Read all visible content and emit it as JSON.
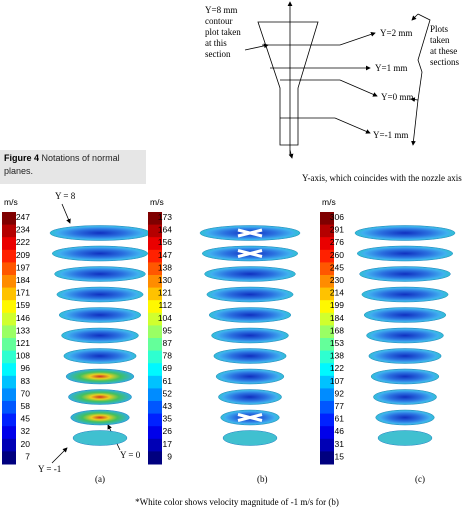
{
  "diagram": {
    "section_note": [
      "Y=8 mm",
      "contour",
      "plot taken",
      "at this",
      "section"
    ],
    "sections": [
      "Y=2 mm",
      "Y=1 mm",
      "Y=0 mm",
      "Y=-1 mm"
    ],
    "plots_note": [
      "Plots",
      "taken",
      "at these",
      "sections"
    ],
    "axis_note": "Y-axis, which coincides with the nozzle axis"
  },
  "caption": {
    "label": "Figure 4",
    "text": "Notations of normal planes."
  },
  "panels": [
    {
      "unit": "m/s",
      "label": "(a)",
      "scale": [
        247,
        234,
        222,
        209,
        197,
        184,
        171,
        159,
        146,
        133,
        121,
        108,
        96,
        83,
        70,
        58,
        45,
        32,
        20,
        7
      ],
      "annotations": [
        "Y = 8",
        "Y = -1",
        "Y = 0"
      ]
    },
    {
      "unit": "m/s",
      "label": "(b)",
      "scale": [
        173,
        164,
        156,
        147,
        138,
        130,
        121,
        112,
        104,
        95,
        87,
        78,
        69,
        61,
        52,
        43,
        35,
        26,
        17,
        9
      ]
    },
    {
      "unit": "m/s",
      "label": "(c)",
      "scale": [
        306,
        291,
        276,
        260,
        245,
        230,
        214,
        199,
        184,
        168,
        153,
        138,
        122,
        107,
        92,
        77,
        61,
        46,
        31,
        15
      ]
    }
  ],
  "footnote": "*White color shows velocity magnitude of -1 m/s for (b)"
}
